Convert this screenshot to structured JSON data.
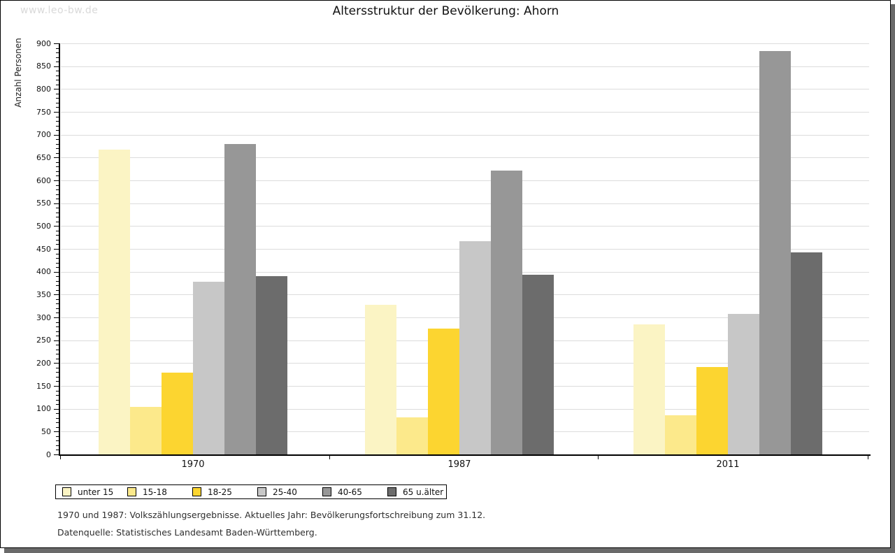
{
  "watermark": "www.leo-bw.de",
  "title": "Altersstruktur der Bevölkerung: Ahorn",
  "footnotes": {
    "line1": "1970 und 1987: Volkszählungsergebnisse. Aktuelles Jahr: Bevölkerungsfortschreibung zum 31.12.",
    "line2": "Datenquelle: Statistisches Landesamt Baden-Württemberg."
  },
  "chart_data": {
    "type": "bar",
    "title": "Altersstruktur der Bevölkerung: Ahorn",
    "xlabel": "",
    "ylabel": "Anzahl Personen",
    "ylim": [
      0,
      900
    ],
    "ytick_step": 50,
    "yminor_step": 10,
    "grid": true,
    "legend_position": "bottom",
    "categories": [
      "1970",
      "1987",
      "2011"
    ],
    "series": [
      {
        "name": "unter 15",
        "color": "#FBF4C4",
        "values": [
          667,
          328,
          284
        ]
      },
      {
        "name": "15-18",
        "color": "#FCE98B",
        "values": [
          104,
          81,
          85
        ]
      },
      {
        "name": "18-25",
        "color": "#FCD530",
        "values": [
          179,
          276,
          191
        ]
      },
      {
        "name": "25-40",
        "color": "#C7C7C7",
        "values": [
          378,
          467,
          308
        ]
      },
      {
        "name": "40-65",
        "color": "#979797",
        "values": [
          680,
          622,
          883
        ]
      },
      {
        "name": "65 u.älter",
        "color": "#6C6C6C",
        "values": [
          391,
          393,
          443
        ]
      }
    ],
    "colors": {
      "axis": "#000000",
      "gridline": "#dcdcdc",
      "shadow": "#6a6a6a",
      "watermark": "#d9d9d9"
    }
  }
}
